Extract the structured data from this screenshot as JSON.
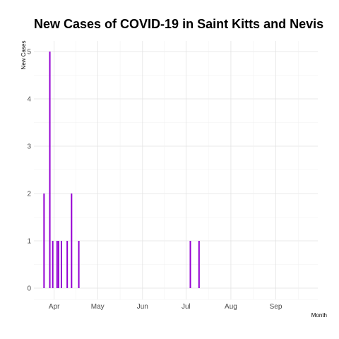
{
  "chart_data": {
    "type": "bar",
    "title": "New Cases of COVID-19 in Saint Kitts and Nevis",
    "xlabel": "Month",
    "ylabel": "New Cases",
    "x_tick_labels": [
      {
        "label": "Apr",
        "date": "2020-04-01"
      },
      {
        "label": "May",
        "date": "2020-05-01"
      },
      {
        "label": "Jun",
        "date": "2020-06-01"
      },
      {
        "label": "Jul",
        "date": "2020-07-01"
      },
      {
        "label": "Aug",
        "date": "2020-08-01"
      },
      {
        "label": "Sep",
        "date": "2020-09-01"
      }
    ],
    "y_ticks": [
      0,
      1,
      2,
      3,
      4,
      5
    ],
    "xlim": [
      "2020-03-18",
      "2020-09-30"
    ],
    "ylim": [
      0,
      5
    ],
    "grid": true,
    "bar_color": "#9400d3",
    "points": [
      {
        "date": "2020-03-25",
        "value": 2
      },
      {
        "date": "2020-03-29",
        "value": 5
      },
      {
        "date": "2020-03-31",
        "value": 1
      },
      {
        "date": "2020-04-03",
        "value": 1
      },
      {
        "date": "2020-04-04",
        "value": 1
      },
      {
        "date": "2020-04-06",
        "value": 1
      },
      {
        "date": "2020-04-10",
        "value": 1
      },
      {
        "date": "2020-04-13",
        "value": 2
      },
      {
        "date": "2020-04-18",
        "value": 1
      },
      {
        "date": "2020-07-04",
        "value": 1
      },
      {
        "date": "2020-07-10",
        "value": 1
      }
    ]
  }
}
